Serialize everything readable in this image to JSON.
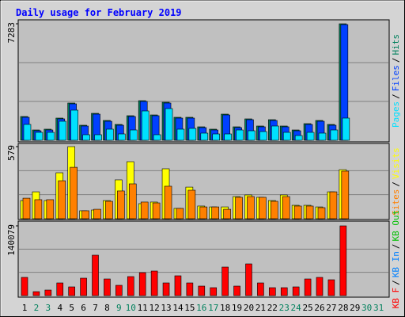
{
  "chart_data": [
    {
      "type": "bar",
      "title": "Daily usage for February 2019",
      "legend_separator": "/",
      "ylim": [
        0,
        7283
      ],
      "yticks": [
        7283
      ],
      "series": [
        {
          "name": "Pages",
          "color": "#00e0ff",
          "values": [
            991,
            495,
            495,
            1189,
            1883,
            347,
            347,
            694,
            396,
            644,
            1833,
            347,
            1982,
            694,
            743,
            446,
            396,
            396,
            644,
            594,
            545,
            892,
            495,
            297,
            495,
            446,
            644,
            1387,
            null,
            null,
            null
          ]
        },
        {
          "name": "Files",
          "color": "#0040ff",
          "values": [
            1437,
            594,
            644,
            1338,
            2279,
            892,
            1635,
            1189,
            941,
            1486,
            2428,
            1536,
            2329,
            1387,
            1387,
            793,
            644,
            1585,
            793,
            1288,
            842,
            1239,
            842,
            594,
            991,
            1189,
            941,
            7233,
            null,
            null,
            null
          ]
        },
        {
          "name": "Hits",
          "color": "#00805c",
          "values": [
            1486,
            644,
            694,
            1387,
            2329,
            941,
            1684,
            1239,
            991,
            1536,
            2477,
            1585,
            2378,
            1437,
            1437,
            842,
            694,
            1635,
            842,
            1338,
            892,
            1288,
            892,
            644,
            1040,
            1239,
            991,
            7283,
            null,
            null,
            null
          ]
        }
      ]
    },
    {
      "type": "bar",
      "legend_separator": "/",
      "ylim": [
        0,
        579
      ],
      "yticks": [
        579
      ],
      "series": [
        {
          "name": "Sites",
          "color": "#ff8000",
          "values": [
            165,
            153,
            153,
            305,
            413,
            64,
            76,
            140,
            223,
            280,
            134,
            127,
            261,
            83,
            229,
            95,
            95,
            76,
            172,
            178,
            172,
            140,
            178,
            102,
            102,
            89,
            216,
            382,
            null,
            null,
            null
          ]
        },
        {
          "name": "Visits",
          "color": "#ffff00",
          "values": [
            146,
            216,
            146,
            369,
            579,
            64,
            70,
            146,
            312,
            458,
            121,
            134,
            401,
            83,
            254,
            102,
            95,
            95,
            178,
            191,
            172,
            146,
            191,
            108,
            108,
            95,
            216,
            394,
            null,
            null,
            null
          ]
        }
      ]
    },
    {
      "type": "bar",
      "legend_separator": "/",
      "ylim": [
        0,
        140079
      ],
      "yticks": [
        140079
      ],
      "categories": [
        "1",
        "2",
        "3",
        "4",
        "5",
        "6",
        "7",
        "8",
        "9",
        "10",
        "11",
        "12",
        "13",
        "14",
        "15",
        "16",
        "17",
        "18",
        "19",
        "20",
        "21",
        "22",
        "23",
        "24",
        "25",
        "26",
        "27",
        "28",
        "29",
        "30",
        "31"
      ],
      "category_colors": [
        "#000000",
        "#00805c",
        "#00805c",
        "#000000",
        "#000000",
        "#000000",
        "#000000",
        "#000000",
        "#00805c",
        "#00805c",
        "#000000",
        "#000000",
        "#000000",
        "#000000",
        "#000000",
        "#00805c",
        "#00805c",
        "#000000",
        "#000000",
        "#000000",
        "#000000",
        "#000000",
        "#00805c",
        "#00805c",
        "#000000",
        "#000000",
        "#000000",
        "#000000",
        "#000000",
        "#00805c",
        "#00805c"
      ],
      "series": [
        {
          "name": "KB F",
          "color": "#ff0000",
          "values": [
            36616,
            7960,
            11144,
            25472,
            17512,
            35024,
            81192,
            33432,
            20696,
            38208,
            46168,
            49352,
            25472,
            39800,
            25472,
            19104,
            15920,
            57312,
            19104,
            63680,
            25472,
            15920,
            15920,
            17512,
            33432,
            36616,
            31840,
            140079,
            null,
            null,
            null
          ]
        },
        {
          "name": "KB In",
          "color": "#0080ff",
          "values": [
            0,
            0,
            0,
            0,
            0,
            0,
            0,
            0,
            0,
            0,
            0,
            0,
            0,
            0,
            0,
            0,
            0,
            0,
            0,
            0,
            0,
            0,
            0,
            0,
            0,
            0,
            0,
            0,
            null,
            null,
            null
          ]
        },
        {
          "name": "KB Out",
          "color": "#00c000",
          "values": [
            0,
            0,
            0,
            0,
            0,
            0,
            0,
            0,
            0,
            0,
            0,
            0,
            0,
            0,
            0,
            0,
            0,
            0,
            0,
            0,
            0,
            0,
            0,
            0,
            0,
            0,
            0,
            0,
            null,
            null,
            null
          ]
        }
      ]
    }
  ]
}
